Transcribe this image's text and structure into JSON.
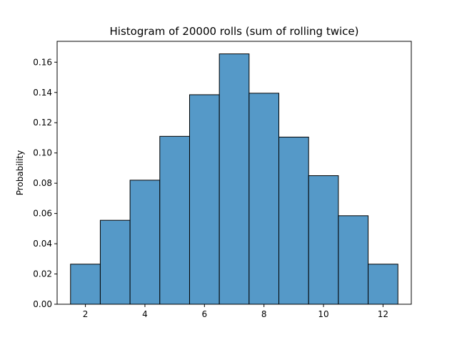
{
  "chart_data": {
    "type": "bar",
    "title": "Histogram of 20000 rolls (sum of rolling twice)",
    "xlabel": "",
    "ylabel": "Probability",
    "categories": [
      2,
      3,
      4,
      5,
      6,
      7,
      8,
      9,
      10,
      11,
      12
    ],
    "values": [
      0.0265,
      0.0555,
      0.082,
      0.111,
      0.1385,
      0.1655,
      0.1395,
      0.1105,
      0.085,
      0.0585,
      0.0265
    ],
    "xlim": [
      1.05,
      12.95
    ],
    "ylim": [
      0,
      0.1738
    ],
    "xticks": [
      2,
      4,
      6,
      8,
      10,
      12
    ],
    "xtick_labels": [
      "2",
      "4",
      "6",
      "8",
      "10",
      "12"
    ],
    "yticks": [
      0,
      0.02,
      0.04,
      0.06,
      0.08,
      0.1,
      0.12,
      0.14,
      0.16
    ],
    "ytick_labels": [
      "0.00",
      "0.02",
      "0.04",
      "0.06",
      "0.08",
      "0.10",
      "0.12",
      "0.14",
      "0.16"
    ],
    "grid": false,
    "colors": {
      "bar_fill": "#5599c8",
      "bar_edge": "#000000"
    }
  }
}
